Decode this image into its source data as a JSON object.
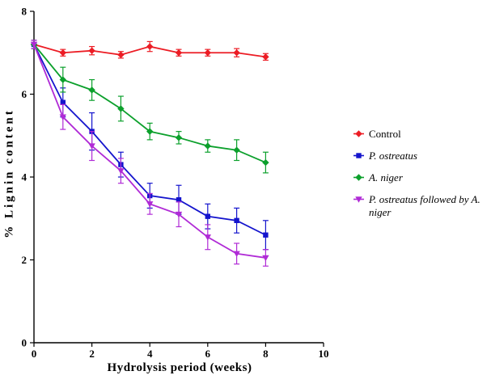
{
  "chart_data": {
    "type": "line",
    "title": "",
    "xlabel": "Hydrolysis period (weeks)",
    "ylabel": "% Lignin content",
    "xlim": [
      0,
      10
    ],
    "ylim": [
      0,
      8
    ],
    "xticks": [
      0,
      2,
      4,
      6,
      8,
      10
    ],
    "yticks": [
      0,
      2,
      4,
      6,
      8
    ],
    "grid": false,
    "legend_position": "right",
    "x": [
      0,
      1,
      2,
      3,
      4,
      5,
      6,
      7,
      8
    ],
    "series": [
      {
        "name": "Control",
        "color": "#ec1c24",
        "marker": "diamond",
        "italic": false,
        "values": [
          7.2,
          7.0,
          7.05,
          6.95,
          7.15,
          7.0,
          7.0,
          7.0,
          6.9
        ],
        "errors": [
          0.1,
          0.08,
          0.1,
          0.08,
          0.12,
          0.08,
          0.08,
          0.1,
          0.08
        ]
      },
      {
        "name": "P. ostreatus",
        "color": "#1414cd",
        "marker": "square",
        "italic": true,
        "values": [
          7.2,
          5.8,
          5.1,
          4.3,
          3.55,
          3.45,
          3.05,
          2.95,
          2.6
        ],
        "errors": [
          0.1,
          0.35,
          0.45,
          0.3,
          0.3,
          0.35,
          0.3,
          0.3,
          0.35
        ]
      },
      {
        "name": "A. niger",
        "color": "#0ca02c",
        "marker": "diamond",
        "italic": true,
        "values": [
          7.2,
          6.35,
          6.1,
          5.65,
          5.1,
          4.95,
          4.75,
          4.65,
          4.35
        ],
        "errors": [
          0.1,
          0.3,
          0.25,
          0.3,
          0.2,
          0.15,
          0.15,
          0.25,
          0.25
        ]
      },
      {
        "name": "P. ostreatus followed by A. niger",
        "color": "#b02bd6",
        "marker": "triangle",
        "italic": true,
        "values": [
          7.2,
          5.45,
          4.75,
          4.15,
          3.35,
          3.1,
          2.55,
          2.15,
          2.05
        ],
        "errors": [
          0.1,
          0.3,
          0.35,
          0.3,
          0.25,
          0.3,
          0.3,
          0.25,
          0.2
        ]
      }
    ]
  }
}
